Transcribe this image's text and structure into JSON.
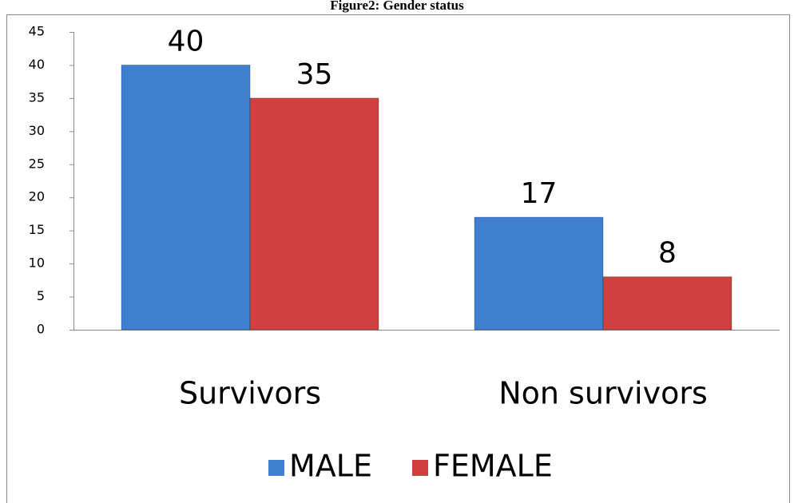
{
  "chart_data": {
    "type": "bar",
    "title": "Figure2: Gender status",
    "categories": [
      "Survivors",
      "Non survivors"
    ],
    "series": [
      {
        "name": "MALE",
        "color": "#3f7fd0",
        "values": [
          40,
          17
        ]
      },
      {
        "name": "FEMALE",
        "color": "#d0403f",
        "values": [
          35,
          8
        ]
      }
    ],
    "ylim": [
      0,
      45
    ],
    "yticks": [
      0,
      5,
      10,
      15,
      20,
      25,
      30,
      35,
      40,
      45
    ],
    "grid": false,
    "legend": "bottom"
  }
}
